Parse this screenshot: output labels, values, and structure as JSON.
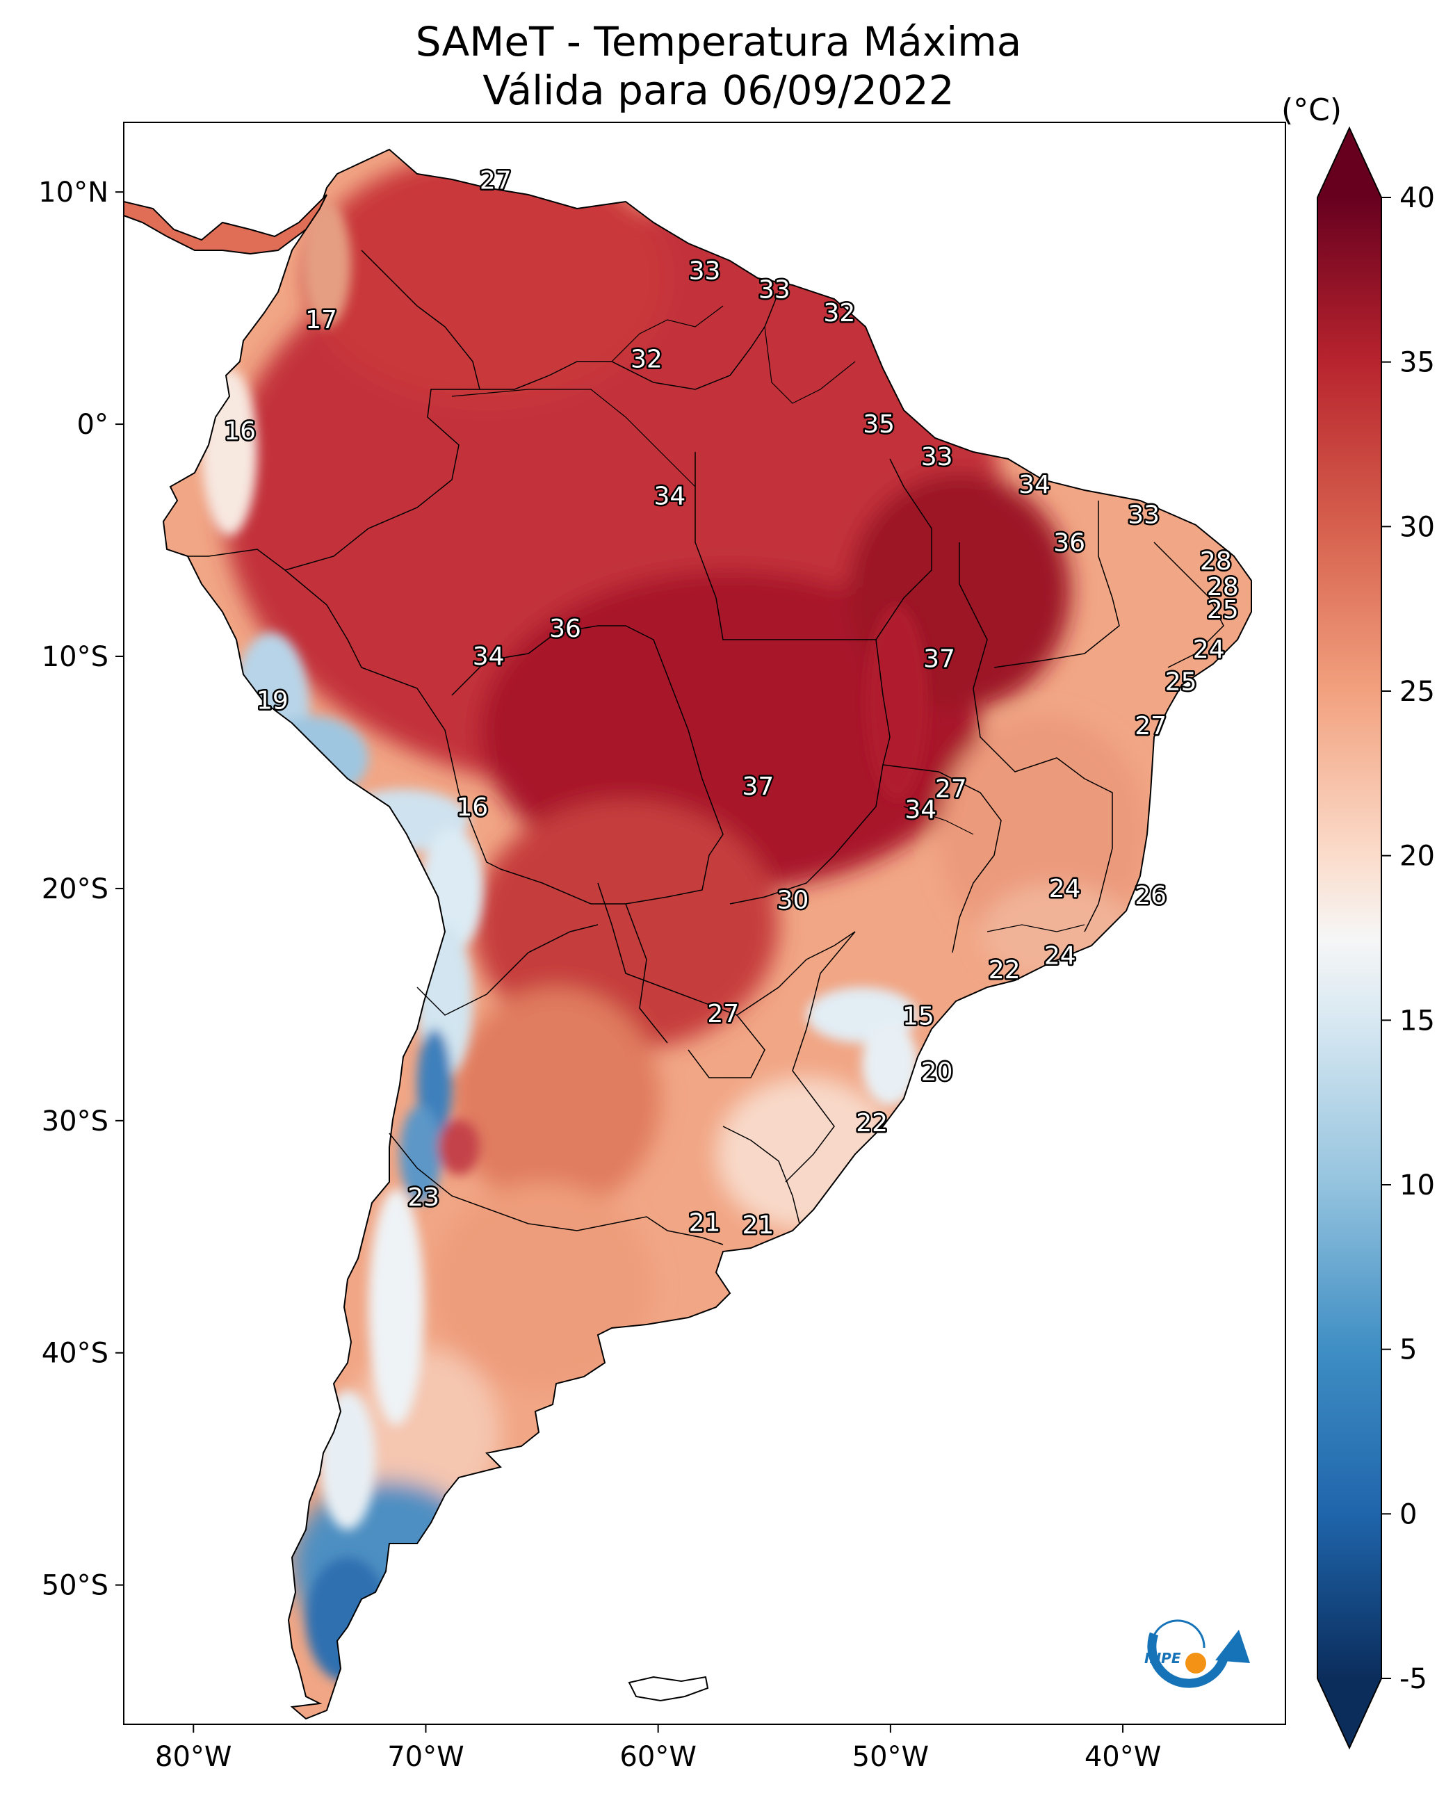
{
  "title": {
    "line1": "SAMeT - Temperatura Máxima",
    "line2": "Válida para 06/09/2022"
  },
  "axes": {
    "lat_ticks": [
      "10°N",
      "0°",
      "10°S",
      "20°S",
      "30°S",
      "40°S",
      "50°S"
    ],
    "lon_ticks": [
      "80°W",
      "70°W",
      "60°W",
      "50°W",
      "40°W"
    ],
    "lat_values": [
      10,
      0,
      -10,
      -20,
      -30,
      -40,
      -50
    ],
    "lon_values": [
      -80,
      -70,
      -60,
      -50,
      -40
    ],
    "lon_range": [
      -83,
      -33
    ],
    "lat_range": [
      -56,
      13
    ]
  },
  "colorbar": {
    "unit": "(°C)",
    "range": [
      -5,
      40
    ],
    "ticks": [
      "40",
      "35",
      "30",
      "25",
      "20",
      "15",
      "10",
      "5",
      "0",
      "-5"
    ],
    "tick_values": [
      40,
      35,
      30,
      25,
      20,
      15,
      10,
      5,
      0,
      -5
    ],
    "stops": [
      {
        "value": -5,
        "color": "#0b2d5c"
      },
      {
        "value": 0,
        "color": "#1f65ab"
      },
      {
        "value": 5,
        "color": "#3f8ec4"
      },
      {
        "value": 10,
        "color": "#94c3de"
      },
      {
        "value": 15,
        "color": "#d8e8f2"
      },
      {
        "value": 17.5,
        "color": "#f6f6f6"
      },
      {
        "value": 20,
        "color": "#fbdccb"
      },
      {
        "value": 25,
        "color": "#f2a17f"
      },
      {
        "value": 30,
        "color": "#d6604d"
      },
      {
        "value": 35,
        "color": "#b8242e"
      },
      {
        "value": 40,
        "color": "#67001f"
      }
    ]
  },
  "logo": {
    "text": "INPE",
    "colors": {
      "primary": "#1673b8",
      "accent": "#f39214"
    }
  },
  "labels": [
    {
      "value": "27",
      "lon": -67.0,
      "lat": 10.5
    },
    {
      "value": "17",
      "lon": -74.5,
      "lat": 4.5
    },
    {
      "value": "33",
      "lon": -58.0,
      "lat": 6.6
    },
    {
      "value": "33",
      "lon": -55.0,
      "lat": 5.8
    },
    {
      "value": "32",
      "lon": -52.2,
      "lat": 4.8
    },
    {
      "value": "32",
      "lon": -60.5,
      "lat": 2.8
    },
    {
      "value": "16",
      "lon": -78.0,
      "lat": -0.3
    },
    {
      "value": "35",
      "lon": -50.5,
      "lat": 0.0
    },
    {
      "value": "33",
      "lon": -48.0,
      "lat": -1.4
    },
    {
      "value": "34",
      "lon": -59.5,
      "lat": -3.1
    },
    {
      "value": "34",
      "lon": -43.8,
      "lat": -2.6
    },
    {
      "value": "33",
      "lon": -39.1,
      "lat": -3.9
    },
    {
      "value": "36",
      "lon": -42.3,
      "lat": -5.1
    },
    {
      "value": "28",
      "lon": -36.0,
      "lat": -5.9
    },
    {
      "value": "28",
      "lon": -35.7,
      "lat": -7.0
    },
    {
      "value": "25",
      "lon": -35.7,
      "lat": -8.0
    },
    {
      "value": "24",
      "lon": -36.3,
      "lat": -9.7
    },
    {
      "value": "36",
      "lon": -64.0,
      "lat": -8.8
    },
    {
      "value": "34",
      "lon": -67.3,
      "lat": -10.0
    },
    {
      "value": "37",
      "lon": -47.9,
      "lat": -10.1
    },
    {
      "value": "25",
      "lon": -37.5,
      "lat": -11.1
    },
    {
      "value": "19",
      "lon": -76.6,
      "lat": -11.9
    },
    {
      "value": "27",
      "lon": -38.8,
      "lat": -13.0
    },
    {
      "value": "37",
      "lon": -55.7,
      "lat": -15.6
    },
    {
      "value": "27",
      "lon": -47.4,
      "lat": -15.7
    },
    {
      "value": "16",
      "lon": -68.0,
      "lat": -16.5
    },
    {
      "value": "34",
      "lon": -48.7,
      "lat": -16.6
    },
    {
      "value": "24",
      "lon": -42.5,
      "lat": -20.0
    },
    {
      "value": "26",
      "lon": -38.8,
      "lat": -20.3
    },
    {
      "value": "30",
      "lon": -54.2,
      "lat": -20.5
    },
    {
      "value": "22",
      "lon": -45.1,
      "lat": -23.5
    },
    {
      "value": "24",
      "lon": -42.7,
      "lat": -22.9
    },
    {
      "value": "15",
      "lon": -48.8,
      "lat": -25.5
    },
    {
      "value": "27",
      "lon": -57.2,
      "lat": -25.4
    },
    {
      "value": "20",
      "lon": -48.0,
      "lat": -27.9
    },
    {
      "value": "22",
      "lon": -50.8,
      "lat": -30.1
    },
    {
      "value": "23",
      "lon": -70.1,
      "lat": -33.3
    },
    {
      "value": "21",
      "lon": -58.0,
      "lat": -34.4
    },
    {
      "value": "21",
      "lon": -55.7,
      "lat": -34.5
    }
  ]
}
